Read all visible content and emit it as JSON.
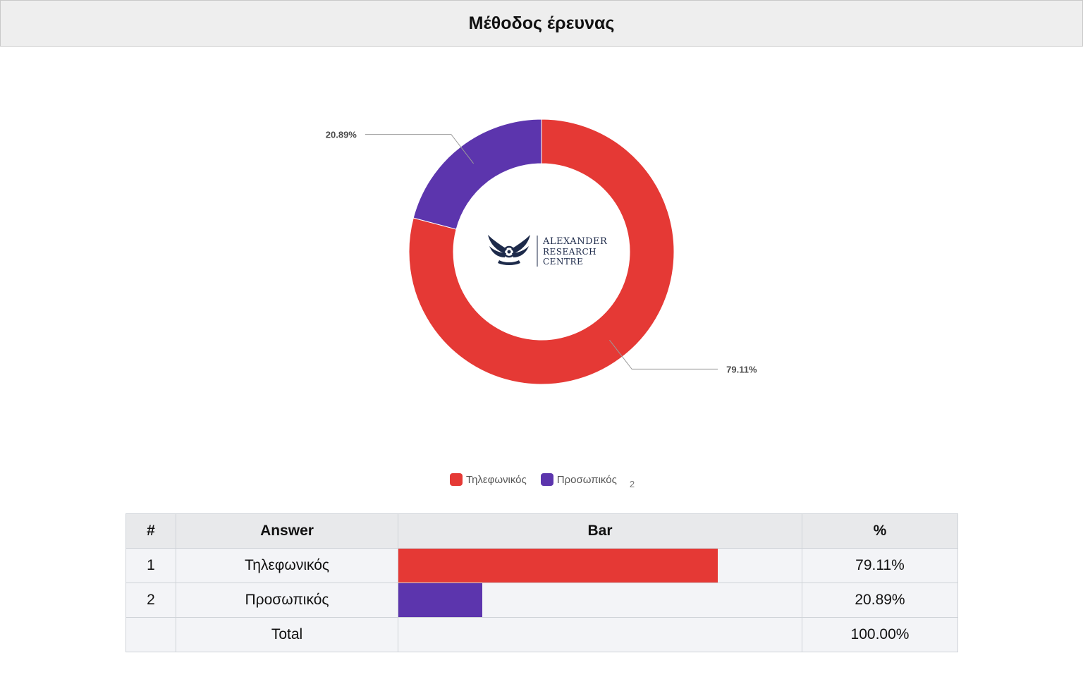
{
  "title": "Μέθοδος έρευνας",
  "colors": {
    "telephone": "#e53935",
    "personal": "#5c35ad"
  },
  "chart_data": {
    "type": "pie",
    "variant": "donut",
    "title": "Μέθοδος έρευνας",
    "categories": [
      "Τηλεφωνικός",
      "Προσωπικός"
    ],
    "values": [
      79.11,
      20.89
    ],
    "data_labels": [
      "79.11%",
      "20.89%"
    ],
    "series_colors": [
      "#e53935",
      "#5c35ad"
    ],
    "legend": "bottom"
  },
  "logo": {
    "line1": "ALEXANDER",
    "line2": "RESEARCH",
    "line3": "CENTRE"
  },
  "legend": {
    "items": [
      {
        "label": "Τηλεφωνικός",
        "color": "#e53935"
      },
      {
        "label": "Προσωπικός",
        "color": "#5c35ad"
      }
    ],
    "note": "2"
  },
  "table": {
    "headers": [
      "#",
      "Answer",
      "Bar",
      "%"
    ],
    "rows": [
      {
        "num": "1",
        "answer": "Τηλεφωνικός",
        "bar_fraction": 0.7911,
        "bar_color": "#e53935",
        "pct": "79.11%"
      },
      {
        "num": "2",
        "answer": "Προσωπικός",
        "bar_fraction": 0.2089,
        "bar_color": "#5c35ad",
        "pct": "20.89%"
      }
    ],
    "total": {
      "label": "Total",
      "pct": "100.00%"
    }
  }
}
